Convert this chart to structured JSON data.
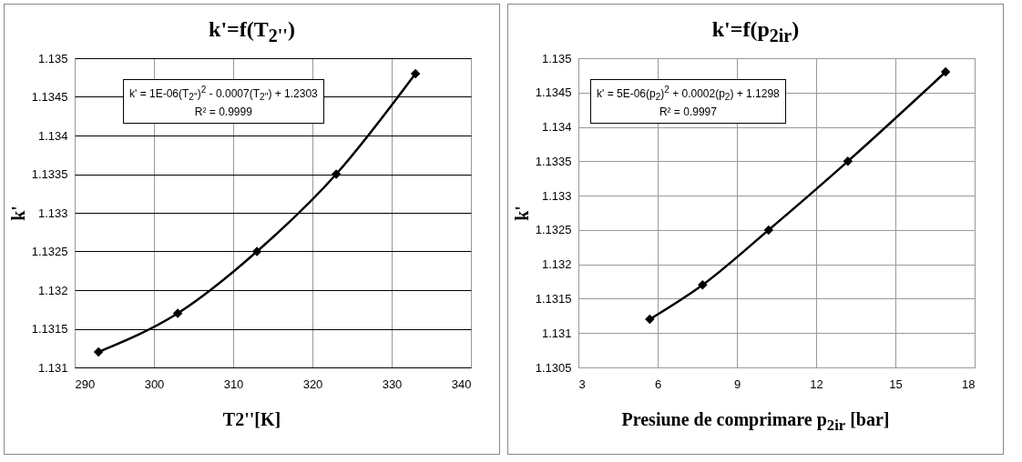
{
  "chart_data": [
    {
      "type": "line",
      "title": "k'=f(T$_{2''}$)",
      "xlabel": "T2''[K]",
      "ylabel": "k'",
      "x": [
        293,
        303,
        313,
        323,
        333
      ],
      "series": [
        {
          "color": "#000000",
          "values": [
            1.1312,
            1.1317,
            1.1325,
            1.1335,
            1.1348
          ],
          "marker": "diamond"
        }
      ],
      "xlim": [
        290,
        340
      ],
      "xticks": [
        290,
        300,
        310,
        320,
        330,
        340
      ],
      "ylim": [
        1.131,
        1.135
      ],
      "yticks": [
        1.131,
        1.1315,
        1.132,
        1.1325,
        1.133,
        1.1335,
        1.134,
        1.1345,
        1.135
      ],
      "annotations": [
        "k' = 1E-06(T$_{2''}$)$^{2}$ - 0.0007(T$_{2''}$) + 1.2303",
        "R² = 0.9999"
      ],
      "grid": true
    },
    {
      "type": "line",
      "title": "k'=f(p$_{2ir}$)",
      "xlabel": "Presiune de comprimare  p$_{2ir}$ [bar]",
      "ylabel": "k'",
      "x": [
        5.7,
        7.7,
        10.2,
        13.2,
        16.9
      ],
      "series": [
        {
          "color": "#000000",
          "values": [
            1.1312,
            1.1317,
            1.1325,
            1.1335,
            1.1348
          ],
          "marker": "diamond"
        }
      ],
      "xlim": [
        3,
        18
      ],
      "xticks": [
        3,
        6,
        9,
        12,
        15,
        18
      ],
      "ylim": [
        1.1305,
        1.135
      ],
      "yticks": [
        1.1305,
        1.131,
        1.1315,
        1.132,
        1.1325,
        1.133,
        1.1335,
        1.134,
        1.1345,
        1.135
      ],
      "annotations": [
        "k' = 5E-06(p$_{2}$)$^{2}$ + 0.0002(p$_{2}$) + 1.1298",
        "R² = 0.9997"
      ],
      "grid": true
    }
  ]
}
